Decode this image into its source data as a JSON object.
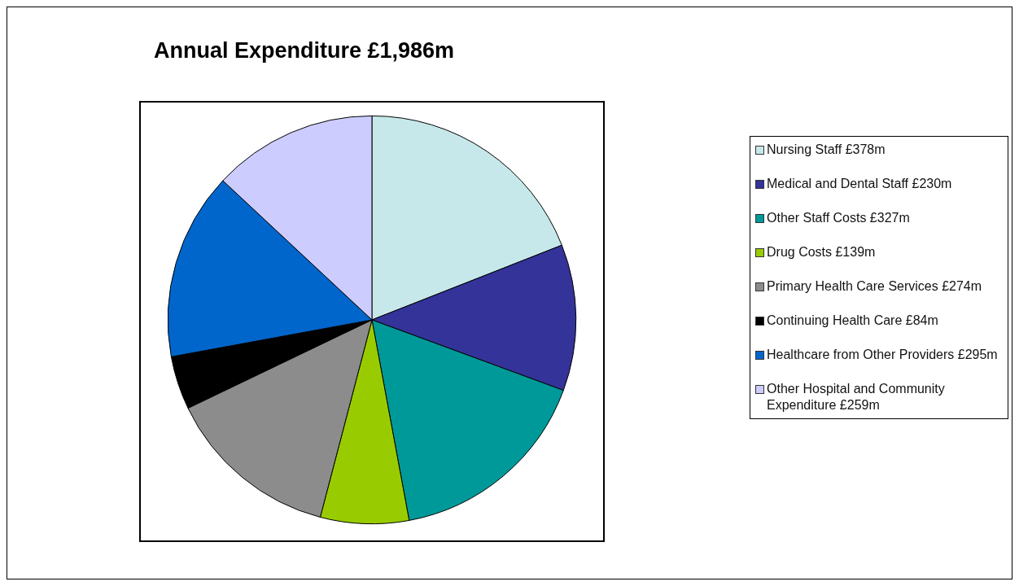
{
  "chart_data": {
    "type": "pie",
    "title": "Annual Expenditure £1,986m",
    "legend": "right",
    "categories": [
      "Nursing Staff",
      "Medical and Dental Staff",
      "Other Staff Costs",
      "Drug Costs",
      "Primary Health Care Services",
      "Continuing Health Care",
      "Healthcare from Other Providers",
      "Other Hospital and Community Expenditure"
    ],
    "values": [
      378,
      230,
      327,
      139,
      274,
      84,
      295,
      259
    ],
    "value_labels": [
      "£378m",
      "£230m",
      "£327m",
      "£139m",
      "£274m",
      "£84m",
      "£295m",
      "£259m"
    ],
    "colors": [
      "#c6e8ea",
      "#333399",
      "#009999",
      "#99cc00",
      "#8c8c8c",
      "#000000",
      "#0066cc",
      "#ccccff"
    ]
  }
}
